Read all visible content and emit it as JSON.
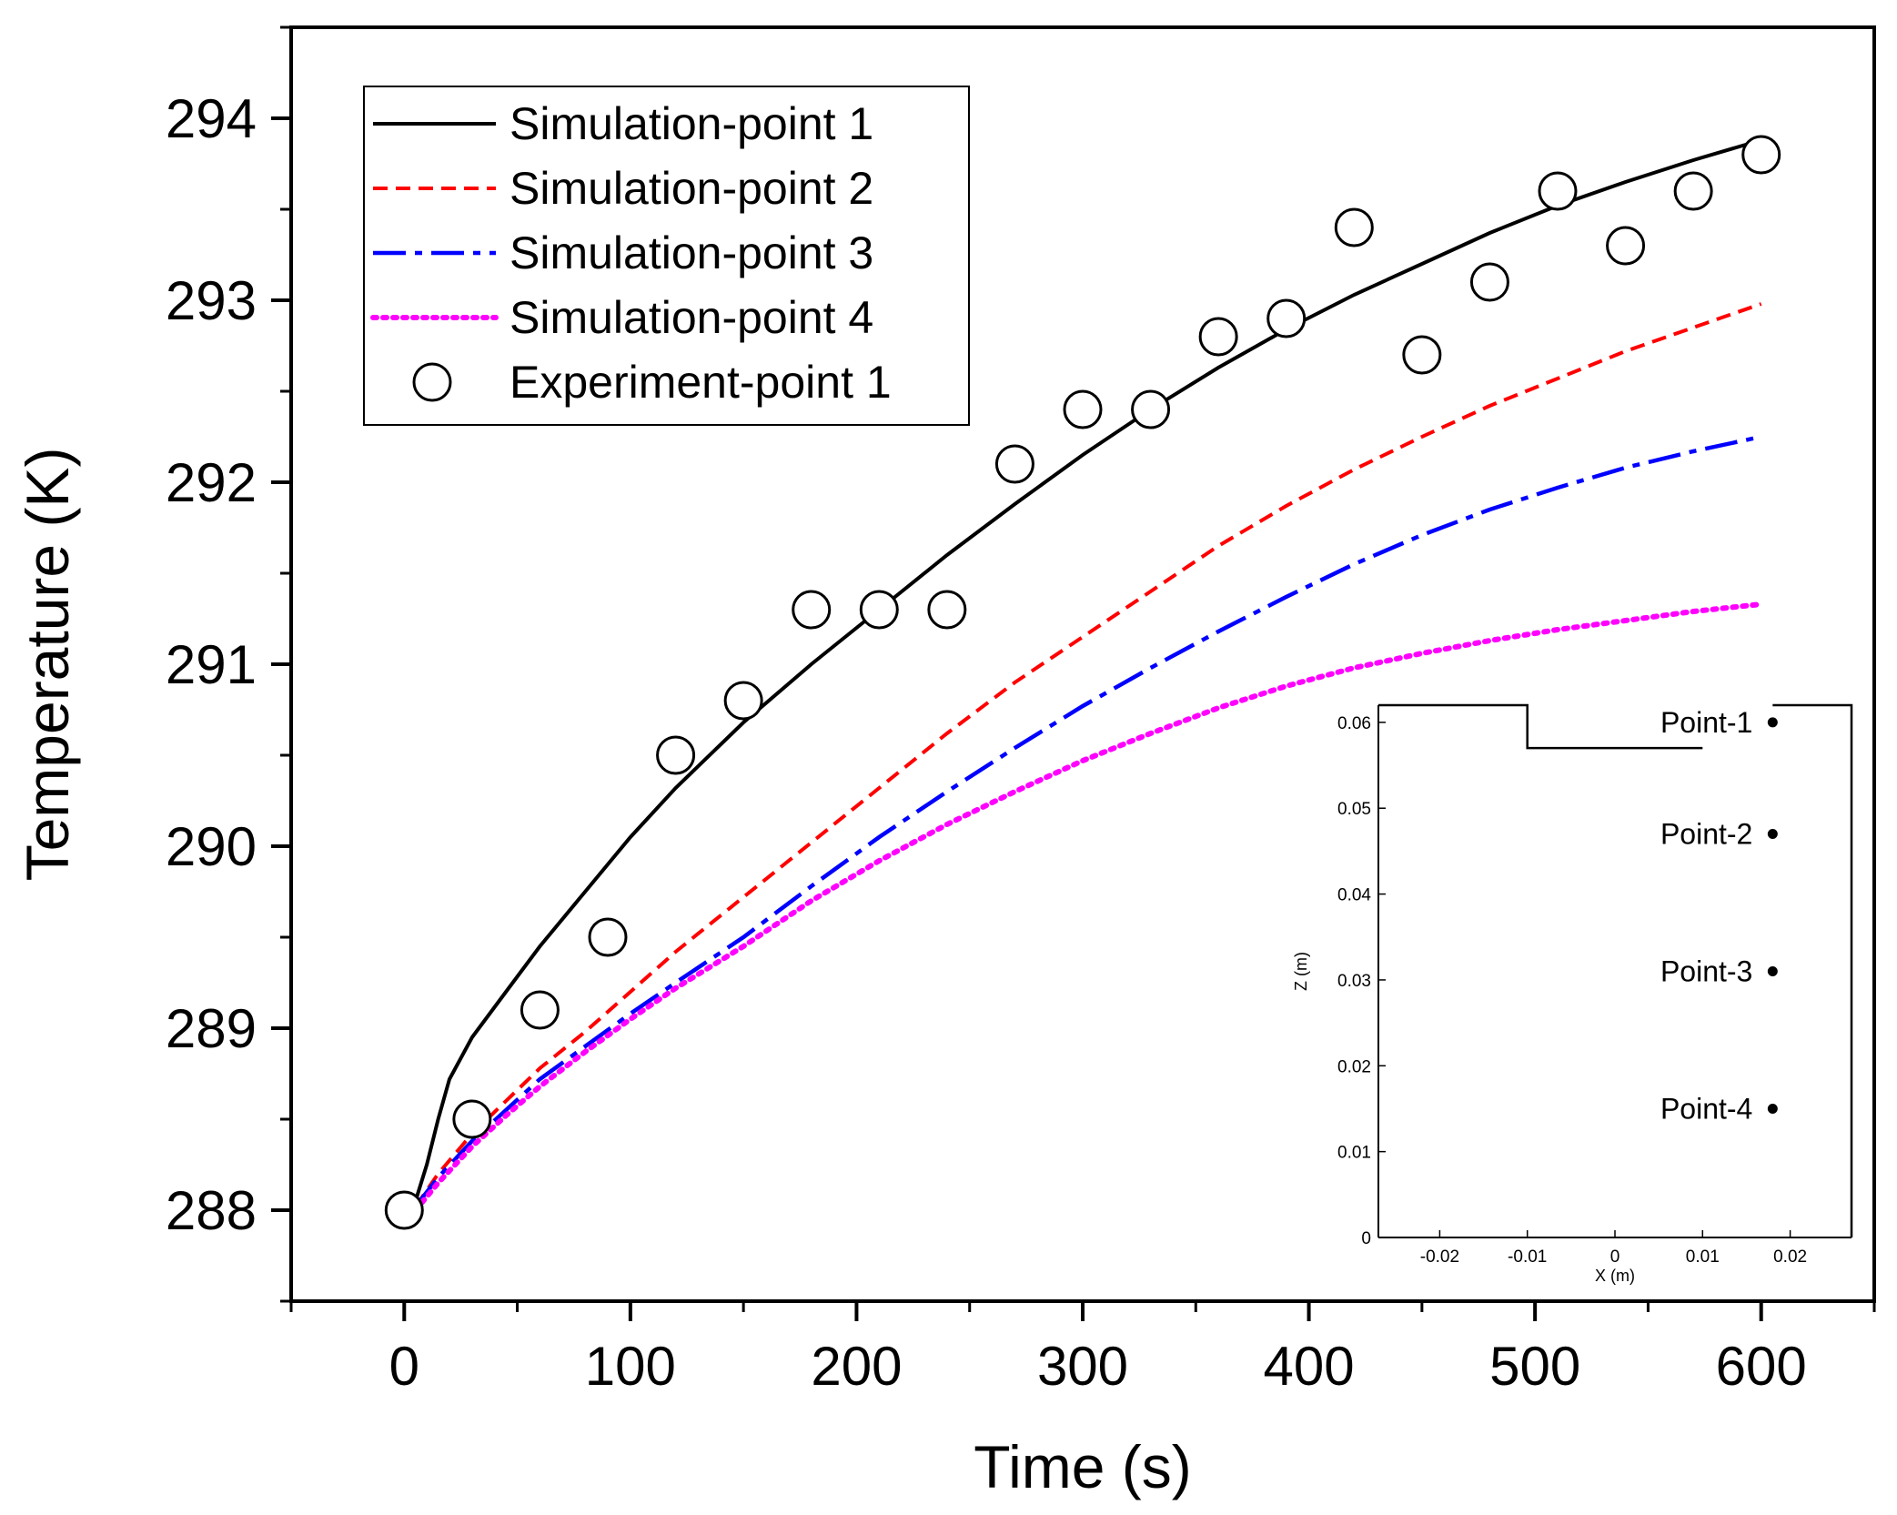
{
  "chart_data": {
    "type": "line",
    "xlabel": "Time (s)",
    "ylabel": "Temperature (K)",
    "xlim": [
      -50,
      650
    ],
    "ylim": [
      287.5,
      294.5
    ],
    "xticks": [
      0,
      100,
      200,
      300,
      400,
      500,
      600
    ],
    "yticks": [
      288,
      289,
      290,
      291,
      292,
      293,
      294
    ],
    "legend_position": "top-left",
    "series": [
      {
        "name": "Simulation-point 1",
        "style": "solid",
        "color": "#000000",
        "x": [
          5,
          10,
          15,
          20,
          30,
          45,
          60,
          80,
          100,
          120,
          150,
          180,
          210,
          240,
          270,
          300,
          330,
          360,
          390,
          420,
          450,
          480,
          510,
          540,
          570,
          600
        ],
        "y": [
          288.05,
          288.25,
          288.5,
          288.72,
          288.95,
          289.2,
          289.45,
          289.75,
          290.05,
          290.32,
          290.68,
          291.0,
          291.3,
          291.6,
          291.88,
          292.15,
          292.4,
          292.63,
          292.84,
          293.03,
          293.2,
          293.37,
          293.52,
          293.65,
          293.77,
          293.88
        ]
      },
      {
        "name": "Simulation-point 2",
        "style": "dashed",
        "color": "#ff0000",
        "x": [
          5,
          15,
          30,
          45,
          60,
          80,
          100,
          120,
          150,
          180,
          210,
          240,
          270,
          300,
          330,
          360,
          390,
          420,
          450,
          480,
          510,
          540,
          570,
          600
        ],
        "y": [
          288.02,
          288.2,
          288.42,
          288.6,
          288.78,
          288.98,
          289.2,
          289.42,
          289.72,
          290.02,
          290.32,
          290.62,
          290.9,
          291.15,
          291.4,
          291.65,
          291.87,
          292.07,
          292.25,
          292.42,
          292.57,
          292.72,
          292.85,
          292.98
        ]
      },
      {
        "name": "Simulation-point 3",
        "style": "dashdot",
        "color": "#0000ff",
        "x": [
          5,
          15,
          30,
          45,
          60,
          80,
          100,
          120,
          150,
          180,
          210,
          240,
          270,
          300,
          330,
          360,
          390,
          420,
          450,
          480,
          510,
          540,
          570,
          600
        ],
        "y": [
          288.02,
          288.18,
          288.38,
          288.55,
          288.72,
          288.9,
          289.08,
          289.25,
          289.5,
          289.78,
          290.05,
          290.3,
          290.54,
          290.77,
          290.98,
          291.18,
          291.37,
          291.55,
          291.71,
          291.85,
          291.97,
          292.08,
          292.17,
          292.25
        ]
      },
      {
        "name": "Simulation-point 4",
        "style": "dotted",
        "color": "#ff00ff",
        "x": [
          5,
          15,
          30,
          45,
          60,
          80,
          100,
          120,
          150,
          180,
          210,
          240,
          270,
          300,
          330,
          360,
          390,
          420,
          450,
          480,
          510,
          540,
          570,
          600
        ],
        "y": [
          288.0,
          288.15,
          288.35,
          288.52,
          288.68,
          288.87,
          289.05,
          289.22,
          289.45,
          289.7,
          289.92,
          290.12,
          290.3,
          290.47,
          290.62,
          290.76,
          290.88,
          290.98,
          291.06,
          291.13,
          291.19,
          291.24,
          291.29,
          291.33
        ]
      },
      {
        "name": "Experiment-point 1",
        "style": "open-circle",
        "color": "#000000",
        "x": [
          0,
          30,
          60,
          90,
          120,
          150,
          180,
          210,
          240,
          270,
          300,
          330,
          360,
          390,
          420,
          450,
          480,
          510,
          540,
          570,
          600
        ],
        "y": [
          288.0,
          288.5,
          289.1,
          289.5,
          290.5,
          290.8,
          291.3,
          291.3,
          291.3,
          292.1,
          292.4,
          292.4,
          292.8,
          292.9,
          293.4,
          292.7,
          293.1,
          293.6,
          293.3,
          293.6,
          293.8
        ]
      }
    ],
    "inset": {
      "xlabel": "X (m)",
      "ylabel": "Z (m)",
      "xlim": [
        -0.027,
        0.027
      ],
      "ylim": [
        0,
        0.062
      ],
      "xticks": [
        -0.02,
        -0.01,
        0,
        0.01,
        0.02
      ],
      "yticks": [
        0,
        0.01,
        0.02,
        0.03,
        0.04,
        0.05,
        0.06
      ],
      "xtick_labels": [
        "-0.02",
        "-0.01",
        "0",
        "0.01",
        "0.02"
      ],
      "ytick_labels": [
        "0",
        "0.01",
        "0.02",
        "0.03",
        "0.04",
        "0.05",
        "0.06"
      ],
      "outline": {
        "x": [
          -0.027,
          -0.01,
          -0.01,
          0.01
        ],
        "y": [
          0.062,
          0.062,
          0.057,
          0.057
        ]
      },
      "outline_right": {
        "x": [
          0.018,
          0.027,
          0.027
        ],
        "y": [
          0.062,
          0.062,
          0.0
        ]
      },
      "points": [
        {
          "label": "Point-1",
          "x": 0.018,
          "z": 0.06
        },
        {
          "label": "Point-2",
          "x": 0.018,
          "z": 0.047
        },
        {
          "label": "Point-3",
          "x": 0.018,
          "z": 0.031
        },
        {
          "label": "Point-4",
          "x": 0.018,
          "z": 0.015
        }
      ]
    }
  }
}
